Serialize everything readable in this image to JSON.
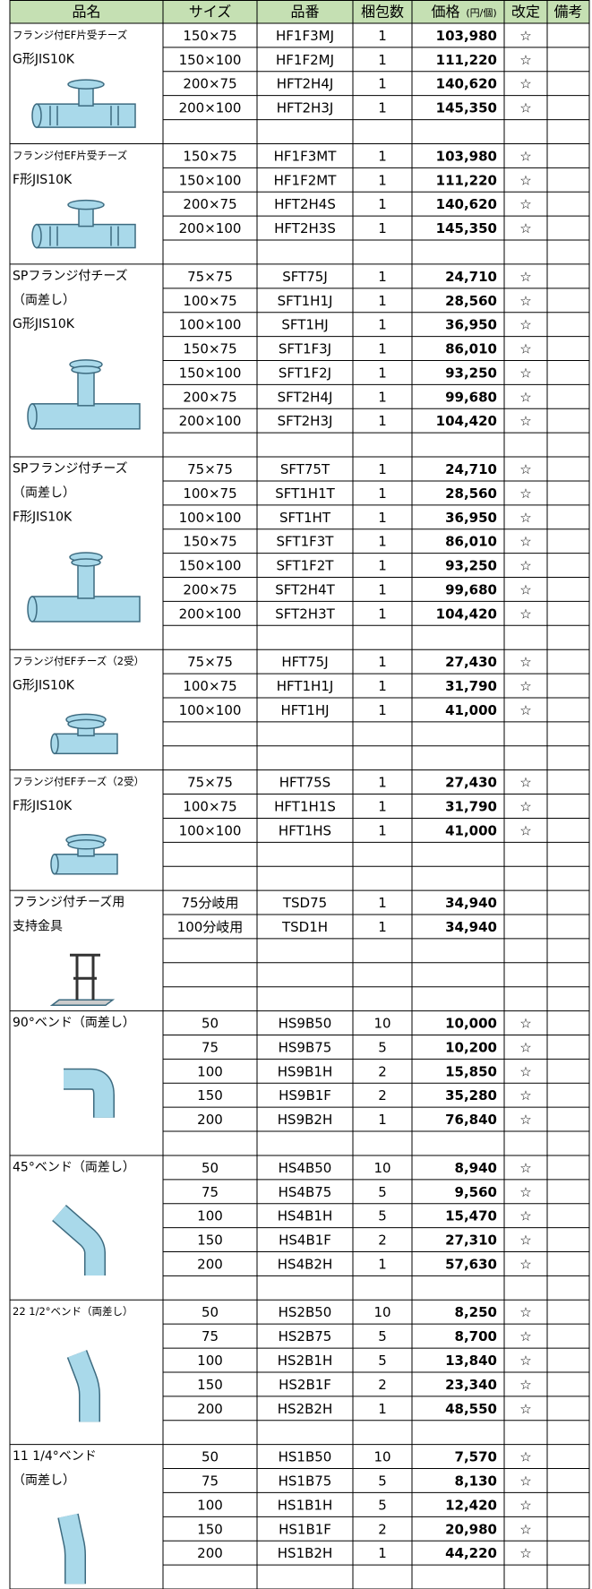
{
  "header": {
    "name": "品名",
    "size": "サイズ",
    "code": "品番",
    "qty": "梱包数",
    "price": "価格",
    "price_unit": "(円/個)",
    "revised": "改定",
    "notes": "備考"
  },
  "groups": [
    {
      "name": [
        "フランジ付EF片受チーズ",
        "G形JIS10K"
      ],
      "rows": [
        [
          "150×75",
          "HF1F3MJ",
          "1",
          "103,980",
          "☆"
        ],
        [
          "150×100",
          "HF1F2MJ",
          "1",
          "111,220",
          "☆"
        ],
        [
          "200×75",
          "HFT2H4J",
          "1",
          "140,620",
          "☆"
        ],
        [
          "200×100",
          "HFT2H3J",
          "1",
          "145,350",
          "☆"
        ]
      ]
    },
    {
      "name": [
        "フランジ付EF片受チーズ",
        "F形JIS10K"
      ],
      "rows": [
        [
          "150×75",
          "HF1F3MT",
          "1",
          "103,980",
          "☆"
        ],
        [
          "150×100",
          "HF1F2MT",
          "1",
          "111,220",
          "☆"
        ],
        [
          "200×75",
          "HFT2H4S",
          "1",
          "140,620",
          "☆"
        ],
        [
          "200×100",
          "HFT2H3S",
          "1",
          "145,350",
          "☆"
        ]
      ]
    },
    {
      "name": [
        "SPフランジ付チーズ",
        "（両差し）",
        "G形JIS10K"
      ],
      "rows": [
        [
          "75×75",
          "SFT75J",
          "1",
          "24,710",
          "☆"
        ],
        [
          "100×75",
          "SFT1H1J",
          "1",
          "28,560",
          "☆"
        ],
        [
          "100×100",
          "SFT1HJ",
          "1",
          "36,950",
          "☆"
        ],
        [
          "150×75",
          "SFT1F3J",
          "1",
          "86,010",
          "☆"
        ],
        [
          "150×100",
          "SFT1F2J",
          "1",
          "93,250",
          "☆"
        ],
        [
          "200×75",
          "SFT2H4J",
          "1",
          "99,680",
          "☆"
        ],
        [
          "200×100",
          "SFT2H3J",
          "1",
          "104,420",
          "☆"
        ]
      ]
    },
    {
      "name": [
        "SPフランジ付チーズ",
        "（両差し）",
        "F形JIS10K"
      ],
      "rows": [
        [
          "75×75",
          "SFT75T",
          "1",
          "24,710",
          "☆"
        ],
        [
          "100×75",
          "SFT1H1T",
          "1",
          "28,560",
          "☆"
        ],
        [
          "100×100",
          "SFT1HT",
          "1",
          "36,950",
          "☆"
        ],
        [
          "150×75",
          "SFT1F3T",
          "1",
          "86,010",
          "☆"
        ],
        [
          "150×100",
          "SFT1F2T",
          "1",
          "93,250",
          "☆"
        ],
        [
          "200×75",
          "SFT2H4T",
          "1",
          "99,680",
          "☆"
        ],
        [
          "200×100",
          "SFT2H3T",
          "1",
          "104,420",
          "☆"
        ]
      ]
    },
    {
      "name": [
        "フランジ付EFチーズ（2受）",
        "G形JIS10K"
      ],
      "rows": [
        [
          "75×75",
          "HFT75J",
          "1",
          "27,430",
          "☆"
        ],
        [
          "100×75",
          "HFT1H1J",
          "1",
          "31,790",
          "☆"
        ],
        [
          "100×100",
          "HFT1HJ",
          "1",
          "41,000",
          "☆"
        ]
      ]
    },
    {
      "name": [
        "フランジ付EFチーズ（2受）",
        "F形JIS10K"
      ],
      "rows": [
        [
          "75×75",
          "HFT75S",
          "1",
          "27,430",
          "☆"
        ],
        [
          "100×75",
          "HFT1H1S",
          "1",
          "31,790",
          "☆"
        ],
        [
          "100×100",
          "HFT1HS",
          "1",
          "41,000",
          "☆"
        ]
      ]
    },
    {
      "name": [
        "フランジ付チーズ用",
        "支持金具"
      ],
      "rows": [
        [
          "75分岐用",
          "TSD75",
          "1",
          "34,940",
          ""
        ],
        [
          "100分岐用",
          "TSD1H",
          "1",
          "34,940",
          ""
        ]
      ]
    },
    {
      "name": [
        "90°ベンド（両差し）"
      ],
      "rows": [
        [
          "50",
          "HS9B50",
          "10",
          "10,000",
          "☆"
        ],
        [
          "75",
          "HS9B75",
          "5",
          "10,200",
          "☆"
        ],
        [
          "100",
          "HS9B1H",
          "2",
          "15,850",
          "☆"
        ],
        [
          "150",
          "HS9B1F",
          "2",
          "35,280",
          "☆"
        ],
        [
          "200",
          "HS9B2H",
          "1",
          "76,840",
          "☆"
        ]
      ]
    },
    {
      "name": [
        "45°ベンド（両差し）"
      ],
      "rows": [
        [
          "50",
          "HS4B50",
          "10",
          "8,940",
          "☆"
        ],
        [
          "75",
          "HS4B75",
          "5",
          "9,560",
          "☆"
        ],
        [
          "100",
          "HS4B1H",
          "5",
          "15,470",
          "☆"
        ],
        [
          "150",
          "HS4B1F",
          "2",
          "27,310",
          "☆"
        ],
        [
          "200",
          "HS4B2H",
          "1",
          "57,630",
          "☆"
        ]
      ]
    },
    {
      "name": [
        "22 1/2°ベンド（両差し）"
      ],
      "rows": [
        [
          "50",
          "HS2B50",
          "10",
          "8,250",
          "☆"
        ],
        [
          "75",
          "HS2B75",
          "5",
          "8,700",
          "☆"
        ],
        [
          "100",
          "HS2B1H",
          "5",
          "13,840",
          "☆"
        ],
        [
          "150",
          "HS2B1F",
          "2",
          "23,340",
          "☆"
        ],
        [
          "200",
          "HS2B2H",
          "1",
          "48,550",
          "☆"
        ]
      ]
    },
    {
      "name": [
        "11 1/4°ベンド",
        "（両差し）"
      ],
      "rows": [
        [
          "50",
          "HS1B50",
          "10",
          "7,570",
          "☆"
        ],
        [
          "75",
          "HS1B75",
          "5",
          "8,130",
          "☆"
        ],
        [
          "100",
          "HS1B1H",
          "5",
          "12,420",
          "☆"
        ],
        [
          "150",
          "HS1B1F",
          "2",
          "20,980",
          "☆"
        ],
        [
          "200",
          "HS1B2H",
          "1",
          "44,220",
          "☆"
        ]
      ]
    }
  ]
}
